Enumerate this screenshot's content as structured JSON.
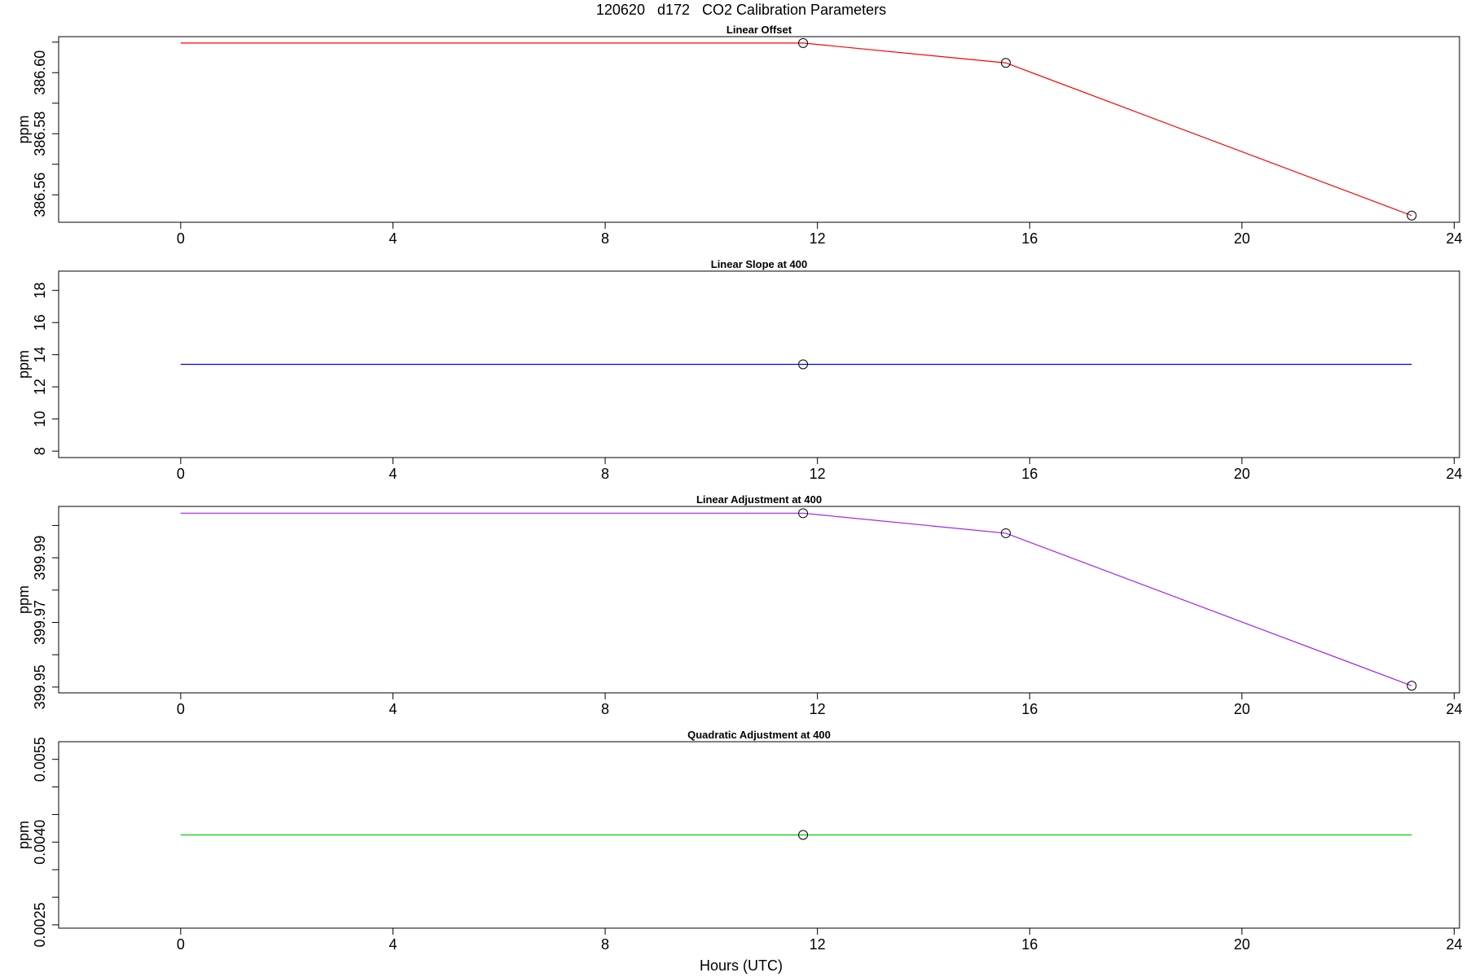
{
  "figure": {
    "title": "120620   d172   CO2 Calibration Parameters",
    "xlabel": "Hours (UTC)"
  },
  "chart_data": [
    {
      "type": "line",
      "title": "Linear Offset",
      "xlabel": "",
      "ylabel": "ppm",
      "color": "#ff0000",
      "xlim": [
        -2.3,
        24.1
      ],
      "ylim": [
        386.551,
        386.6118
      ],
      "x_ticks": [
        0,
        4,
        8,
        12,
        16,
        20,
        24
      ],
      "y_ticks": [
        386.55,
        386.56,
        386.57,
        386.58,
        386.59,
        386.6,
        386.61
      ],
      "y_tick_labels": [
        "",
        "386.56",
        "",
        "386.58",
        "",
        "386.60",
        ""
      ],
      "line": {
        "x": [
          0,
          11.73,
          15.55,
          23.2
        ],
        "y": [
          386.6097,
          386.6097,
          386.6032,
          386.5532
        ]
      },
      "points": {
        "x": [
          11.73,
          15.55,
          23.2
        ],
        "y": [
          386.6097,
          386.6032,
          386.5532
        ]
      }
    },
    {
      "type": "line",
      "title": "Linear Slope at 400",
      "xlabel": "",
      "ylabel": "ppm",
      "color": "#0000ff",
      "xlim": [
        -2.3,
        24.1
      ],
      "ylim": [
        7.6,
        19.2
      ],
      "x_ticks": [
        0,
        4,
        8,
        12,
        16,
        20,
        24
      ],
      "y_ticks": [
        8,
        10,
        12,
        14,
        16,
        18
      ],
      "y_tick_labels": [
        "8",
        "10",
        "12",
        "14",
        "16",
        "18"
      ],
      "line": {
        "x": [
          0,
          23.2
        ],
        "y": [
          13.4,
          13.4
        ]
      },
      "points": {
        "x": [
          11.73
        ],
        "y": [
          13.4
        ]
      }
    },
    {
      "type": "line",
      "title": "Linear Adjustment at 400",
      "xlabel": "",
      "ylabel": "ppm",
      "color": "#a020f0",
      "xlim": [
        -2.3,
        24.1
      ],
      "ylim": [
        399.9482,
        400.0059
      ],
      "x_ticks": [
        0,
        4,
        8,
        12,
        16,
        20,
        24
      ],
      "y_ticks": [
        399.95,
        399.96,
        399.97,
        399.98,
        399.99,
        400.0
      ],
      "y_tick_labels": [
        "399.95",
        "",
        "399.97",
        "",
        "399.99",
        ""
      ],
      "line": {
        "x": [
          0,
          11.73,
          15.55,
          23.2
        ],
        "y": [
          400.0038,
          400.0038,
          399.9976,
          399.9504
        ]
      },
      "points": {
        "x": [
          11.73,
          15.55,
          23.2
        ],
        "y": [
          400.0038,
          399.9976,
          399.9504
        ]
      }
    },
    {
      "type": "line",
      "title": "Quadratic Adjustment at 400",
      "xlabel": "Hours (UTC)",
      "ylabel": "ppm",
      "color": "#00cd00",
      "xlim": [
        -2.3,
        24.1
      ],
      "ylim": [
        0.00244,
        0.00582
      ],
      "x_ticks": [
        0,
        4,
        8,
        12,
        16,
        20,
        24
      ],
      "y_ticks": [
        0.0025,
        0.003,
        0.0035,
        0.004,
        0.0045,
        0.005,
        0.0055
      ],
      "y_tick_labels": [
        "0.0025",
        "",
        "",
        "0.0040",
        "",
        "",
        "0.0055"
      ],
      "line": {
        "x": [
          0,
          23.2
        ],
        "y": [
          0.00413,
          0.00413
        ]
      },
      "points": {
        "x": [
          11.73
        ],
        "y": [
          0.00413
        ]
      }
    }
  ]
}
